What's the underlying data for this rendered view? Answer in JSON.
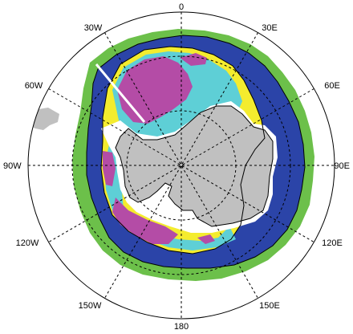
{
  "map": {
    "projection": "south-polar-stereographic",
    "longitude_labels": {
      "top": "0",
      "bottom": "180",
      "left": "90W",
      "right": "90E",
      "upper_left_1": "30W",
      "upper_left_2": "60W",
      "upper_right_1": "30E",
      "upper_right_2": "60E",
      "lower_left_1": "120W",
      "lower_left_2": "150W",
      "lower_right_1": "120E",
      "lower_right_2": "150E"
    },
    "colors": {
      "ocean_background": "#ffffff",
      "land": "#c0c0c0",
      "band_outer": "#6cc04a",
      "band_2": "#2b44a8",
      "band_3": "#f4ec2e",
      "band_4": "#5ecfd6",
      "band_5": "#b44ca6",
      "grid": "#000000",
      "track": "#ffffff"
    }
  }
}
